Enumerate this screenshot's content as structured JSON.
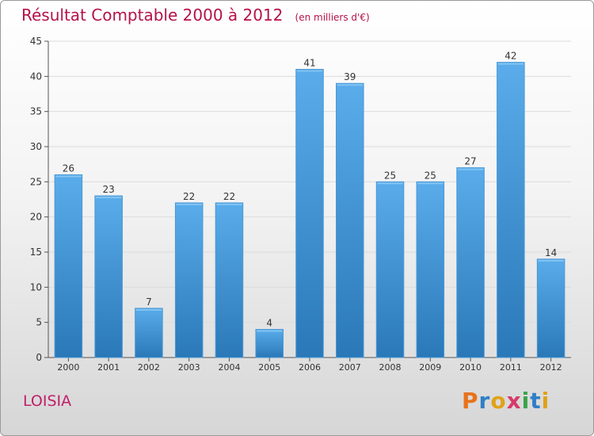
{
  "chart_data": {
    "type": "bar",
    "title": "Résultat Comptable 2000 à 2012",
    "subtitle": "(en milliers d'€)",
    "categories": [
      "2000",
      "2001",
      "2002",
      "2003",
      "2004",
      "2005",
      "2006",
      "2007",
      "2008",
      "2009",
      "2010",
      "2011",
      "2012"
    ],
    "values": [
      26,
      23,
      7,
      22,
      22,
      4,
      41,
      39,
      25,
      25,
      27,
      42,
      14
    ],
    "ylim": [
      0,
      45
    ],
    "yticks": [
      0,
      5,
      10,
      15,
      20,
      25,
      30,
      35,
      40,
      45
    ],
    "xlabel": "",
    "ylabel": "",
    "grid": true,
    "bar_color_top": "#5aacea",
    "bar_color_bottom": "#2a78b8"
  },
  "footer": {
    "place": "LOISIA",
    "brand": {
      "letters": [
        {
          "ch": "P",
          "color": "#e8731c"
        },
        {
          "ch": "r",
          "color": "#2f7fc7"
        },
        {
          "ch": "o",
          "color": "#e0a21a"
        },
        {
          "ch": "x",
          "color": "#d83a6a"
        },
        {
          "ch": "i",
          "color": "#3aa34a"
        },
        {
          "ch": "t",
          "color": "#2f7fc7"
        },
        {
          "ch": "i",
          "color": "#e0a21a"
        }
      ]
    }
  }
}
